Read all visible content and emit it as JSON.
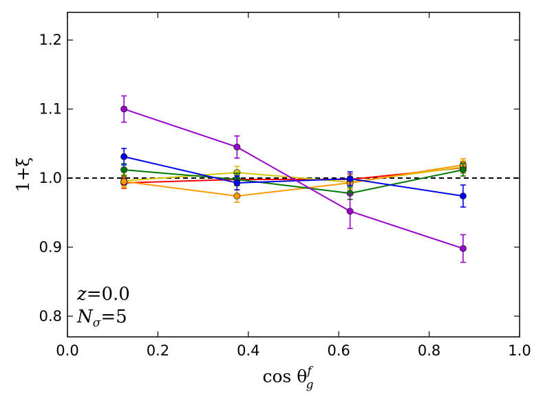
{
  "chart_data": {
    "type": "line",
    "title": "",
    "xlabel": "cos θ",
    "xlabel_sup": "f",
    "xlabel_sub": "g",
    "ylabel": "1+ξ",
    "xlim": [
      0.0,
      1.0
    ],
    "ylim": [
      0.77,
      1.24
    ],
    "x_ticks": [
      0.0,
      0.2,
      0.4,
      0.6,
      0.8,
      1.0
    ],
    "x_tick_labels": [
      "0.0",
      "0.2",
      "0.4",
      "0.6",
      "0.8",
      "1.0"
    ],
    "y_ticks": [
      0.8,
      0.9,
      1.0,
      1.1,
      1.2
    ],
    "y_tick_labels": [
      "0.8",
      "0.9",
      "1.0",
      "1.1",
      "1.2"
    ],
    "reference_line": {
      "y": 1.0,
      "style": "dashed",
      "color": "#000000"
    },
    "annotations": [
      {
        "name": "redshift",
        "lhs": "z",
        "rhs": "0.0"
      },
      {
        "name": "nsigma",
        "lhs": "N",
        "sub": "σ",
        "rhs": "5"
      }
    ],
    "x": [
      0.125,
      0.375,
      0.625,
      0.875
    ],
    "series": [
      {
        "name": "red",
        "color": "#ff0000",
        "values": [
          0.993,
          0.998,
          0.998,
          1.015
        ],
        "errors": [
          0.008,
          0.008,
          0.008,
          0.008
        ]
      },
      {
        "name": "yellow",
        "color": "#d4c40a",
        "values": [
          0.996,
          1.008,
          0.994,
          1.016
        ],
        "errors": [
          0.009,
          0.009,
          0.009,
          0.009
        ]
      },
      {
        "name": "orange",
        "color": "#ff9900",
        "values": [
          0.995,
          0.974,
          0.993,
          1.019
        ],
        "errors": [
          0.009,
          0.009,
          0.009,
          0.009
        ]
      },
      {
        "name": "green",
        "color": "#007700",
        "values": [
          1.012,
          0.998,
          0.978,
          1.012
        ],
        "errors": [
          0.009,
          0.009,
          0.009,
          0.009
        ]
      },
      {
        "name": "blue",
        "color": "#0000ee",
        "values": [
          1.031,
          0.993,
          0.999,
          0.974
        ],
        "errors": [
          0.012,
          0.01,
          0.01,
          0.016
        ]
      },
      {
        "name": "purple",
        "color": "#9900cc",
        "values": [
          1.1,
          1.045,
          0.952,
          0.898
        ],
        "errors": [
          0.019,
          0.016,
          0.025,
          0.02
        ]
      }
    ]
  }
}
